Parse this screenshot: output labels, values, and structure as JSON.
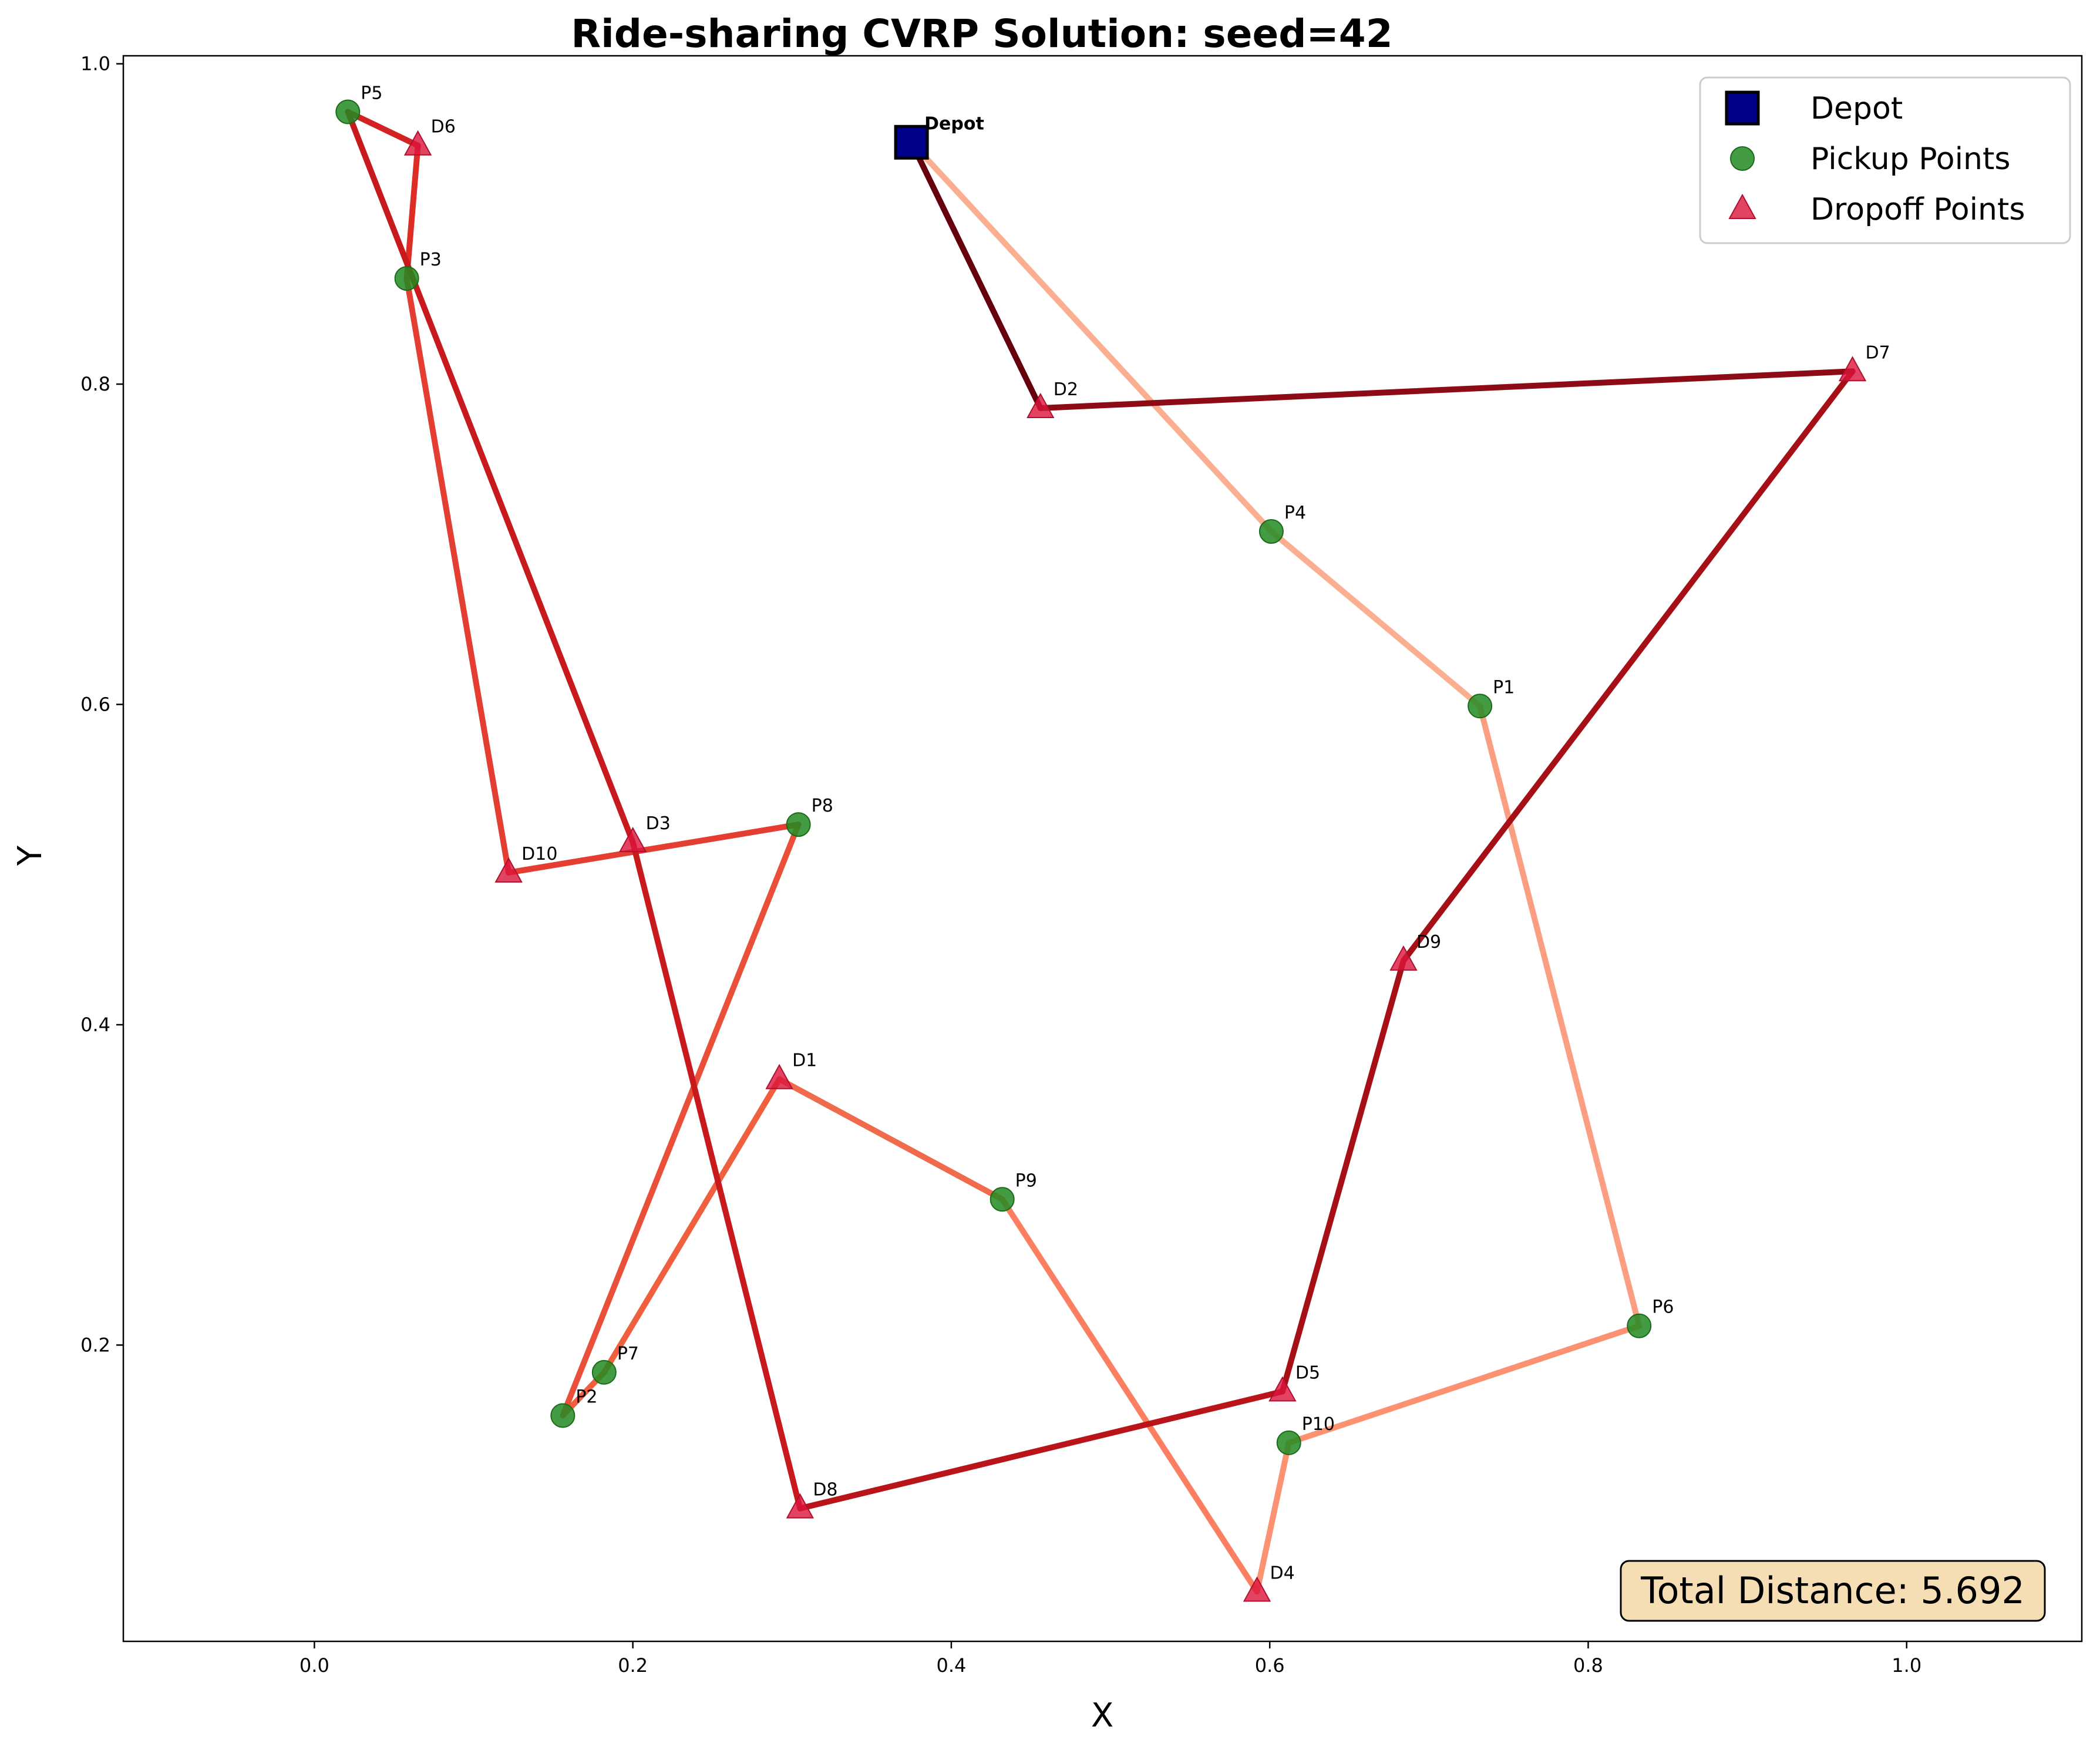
{
  "chart_data": {
    "type": "scatter",
    "title": "Ride-sharing CVRP Solution: seed=42",
    "xlabel": "X",
    "ylabel": "Y",
    "xlim": [
      -0.12,
      1.11
    ],
    "ylim": [
      0.015,
      1.005
    ],
    "xticks": [
      0.0,
      0.2,
      0.4,
      0.6,
      0.8,
      1.0
    ],
    "yticks": [
      0.2,
      0.4,
      0.6,
      0.8,
      1.0
    ],
    "xtick_labels": [
      "0.0",
      "0.2",
      "0.4",
      "0.6",
      "0.8",
      "1.0"
    ],
    "ytick_labels": [
      "0.2",
      "0.4",
      "0.6",
      "0.8",
      "1.0"
    ],
    "grid": false,
    "legend_position": "top-right",
    "legend": [
      "Depot",
      "Pickup Points",
      "Dropoff Points"
    ],
    "depot": {
      "label": "Depot",
      "x": 0.375,
      "y": 0.951
    },
    "pickups": [
      {
        "label": "P1",
        "x": 0.732,
        "y": 0.599
      },
      {
        "label": "P2",
        "x": 0.156,
        "y": 0.156
      },
      {
        "label": "P3",
        "x": 0.058,
        "y": 0.866
      },
      {
        "label": "P4",
        "x": 0.601,
        "y": 0.708
      },
      {
        "label": "P5",
        "x": 0.021,
        "y": 0.97
      },
      {
        "label": "P6",
        "x": 0.832,
        "y": 0.212
      },
      {
        "label": "P7",
        "x": 0.182,
        "y": 0.183
      },
      {
        "label": "P8",
        "x": 0.304,
        "y": 0.525
      },
      {
        "label": "P9",
        "x": 0.432,
        "y": 0.291
      },
      {
        "label": "P10",
        "x": 0.612,
        "y": 0.139
      }
    ],
    "dropoffs": [
      {
        "label": "D1",
        "x": 0.292,
        "y": 0.366
      },
      {
        "label": "D2",
        "x": 0.456,
        "y": 0.785
      },
      {
        "label": "D3",
        "x": 0.2,
        "y": 0.514
      },
      {
        "label": "D4",
        "x": 0.592,
        "y": 0.046
      },
      {
        "label": "D5",
        "x": 0.608,
        "y": 0.171
      },
      {
        "label": "D6",
        "x": 0.065,
        "y": 0.949
      },
      {
        "label": "D7",
        "x": 0.966,
        "y": 0.808
      },
      {
        "label": "D8",
        "x": 0.305,
        "y": 0.098
      },
      {
        "label": "D9",
        "x": 0.684,
        "y": 0.44
      },
      {
        "label": "D10",
        "x": 0.122,
        "y": 0.495
      }
    ],
    "route": [
      "Depot",
      "P4",
      "P1",
      "P6",
      "P10",
      "D4",
      "P9",
      "D1",
      "P7",
      "P2",
      "P8",
      "D10",
      "P3",
      "D6",
      "P5",
      "D3",
      "D8",
      "D5",
      "D9",
      "D7",
      "D2",
      "Depot"
    ],
    "route_colors": [
      "#fcae91",
      "#fb9e81",
      "#fc9272",
      "#fb7f60",
      "#f06a4c",
      "#f0603f",
      "#ea5039",
      "#e43d31",
      "#de2d26",
      "#d22221",
      "#c8191c",
      "#b91419",
      "#a50f15",
      "#8c0b14",
      "#67000d"
    ],
    "total_distance_text": "Total Distance: 5.692",
    "colors": {
      "depot_fill": "#00008b",
      "pickup_fill": "#228b22",
      "dropoff_fill": "#dc143c",
      "total_box_fill": "#f5deb3"
    }
  }
}
